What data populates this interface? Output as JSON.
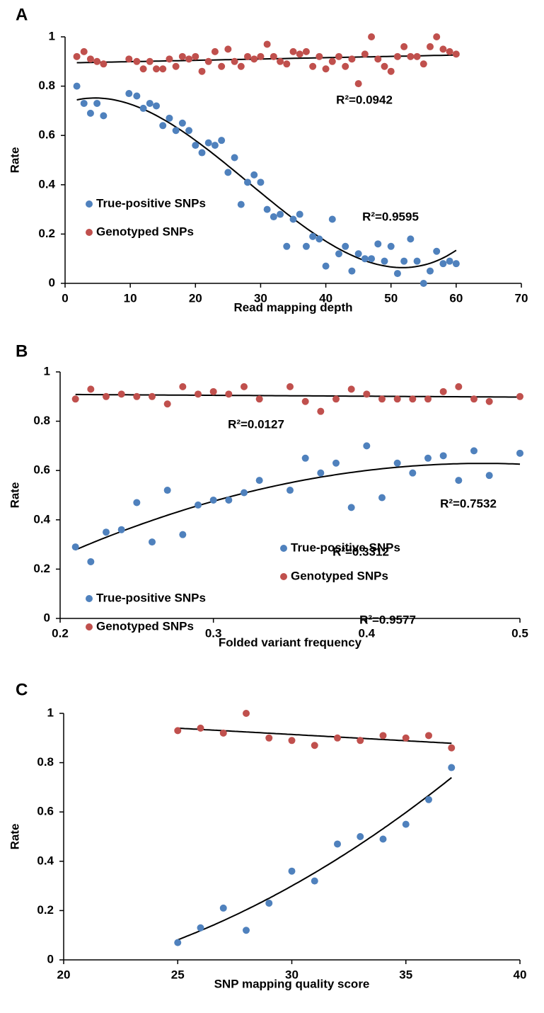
{
  "chart_data": [
    {
      "type": "scatter",
      "panel_label": "A",
      "xlabel": "Read mapping depth",
      "ylabel": "Rate",
      "xlim": [
        0,
        70
      ],
      "xticks": [
        0,
        10,
        20,
        30,
        40,
        50,
        60,
        70
      ],
      "ylim": [
        0,
        1
      ],
      "yticks": [
        0,
        0.2,
        0.4,
        0.6,
        0.8,
        1
      ],
      "grid": false,
      "legend": "left",
      "x": [
        1.8,
        2.9,
        3.9,
        4.9,
        5.9,
        9.8,
        11,
        12,
        13,
        14,
        15,
        16,
        17,
        18,
        19,
        20,
        21,
        22,
        23,
        24,
        25,
        26,
        27,
        28,
        29,
        30,
        31,
        32,
        33,
        34,
        35,
        36,
        37,
        38,
        39,
        40,
        41,
        42,
        43,
        44,
        45,
        46,
        47,
        48,
        49,
        50,
        51,
        52,
        53,
        54,
        55,
        56,
        57,
        58,
        59,
        60
      ],
      "series": [
        {
          "name": "True-positive SNPs",
          "color": "#4f81bd",
          "trendline_order": 3,
          "r2_label": "R²=0.9595",
          "values": [
            0.8,
            0.73,
            0.69,
            0.73,
            0.68,
            0.77,
            0.76,
            0.71,
            0.73,
            0.72,
            0.64,
            0.67,
            0.62,
            0.65,
            0.62,
            0.56,
            0.53,
            0.57,
            0.56,
            0.58,
            0.45,
            0.51,
            0.32,
            0.41,
            0.44,
            0.41,
            0.3,
            0.27,
            0.28,
            0.15,
            0.26,
            0.28,
            0.15,
            0.19,
            0.18,
            0.07,
            0.26,
            0.12,
            0.15,
            0.05,
            0.12,
            0.1,
            0.1,
            0.16,
            0.09,
            0.15,
            0.04,
            0.09,
            0.18,
            0.09,
            0.0,
            0.05,
            0.13,
            0.08,
            0.09,
            0.08
          ]
        },
        {
          "name": "Genotyped SNPs",
          "color": "#c0504d",
          "trendline_order": 1,
          "r2_label": "R²=0.0942",
          "values": [
            0.92,
            0.94,
            0.91,
            0.9,
            0.89,
            0.91,
            0.9,
            0.87,
            0.9,
            0.87,
            0.87,
            0.91,
            0.88,
            0.92,
            0.91,
            0.92,
            0.86,
            0.9,
            0.94,
            0.88,
            0.95,
            0.9,
            0.88,
            0.92,
            0.91,
            0.92,
            0.97,
            0.92,
            0.9,
            0.89,
            0.94,
            0.93,
            0.94,
            0.88,
            0.92,
            0.87,
            0.9,
            0.92,
            0.88,
            0.91,
            0.81,
            0.93,
            1.0,
            0.91,
            0.88,
            0.86,
            0.92,
            0.96,
            0.92,
            0.92,
            0.89,
            0.96,
            1.0,
            0.95,
            0.94,
            0.93
          ]
        }
      ]
    },
    {
      "type": "scatter",
      "panel_label": "B",
      "xlabel": "Folded variant frequency",
      "ylabel": "Rate",
      "xlim": [
        0.2,
        0.5
      ],
      "xticks": [
        0.2,
        0.3,
        0.4,
        0.5
      ],
      "ylim": [
        0,
        1
      ],
      "yticks": [
        0,
        0.2,
        0.4,
        0.6,
        0.8,
        1
      ],
      "grid": false,
      "legend": "lower center",
      "x": [
        0.21,
        0.22,
        0.23,
        0.24,
        0.25,
        0.26,
        0.27,
        0.28,
        0.29,
        0.3,
        0.31,
        0.32,
        0.33,
        0.35,
        0.36,
        0.37,
        0.38,
        0.39,
        0.4,
        0.41,
        0.42,
        0.43,
        0.44,
        0.45,
        0.46,
        0.47,
        0.48,
        0.5
      ],
      "series": [
        {
          "name": "True-positive SNPs",
          "color": "#4f81bd",
          "trendline_order": 2,
          "r2_label": "R²=0.7532",
          "values": [
            0.29,
            0.23,
            0.35,
            0.36,
            0.47,
            0.31,
            0.52,
            0.34,
            0.46,
            0.48,
            0.48,
            0.51,
            0.56,
            0.52,
            0.65,
            0.59,
            0.63,
            0.45,
            0.7,
            0.49,
            0.63,
            0.59,
            0.65,
            0.66,
            0.56,
            0.68,
            0.58,
            0.67
          ]
        },
        {
          "name": "Genotyped SNPs",
          "color": "#c0504d",
          "trendline_order": 1,
          "r2_label": "R²=0.0127",
          "values": [
            0.89,
            0.93,
            0.9,
            0.91,
            0.9,
            0.9,
            0.87,
            0.94,
            0.91,
            0.92,
            0.91,
            0.94,
            0.89,
            0.94,
            0.88,
            0.84,
            0.89,
            0.93,
            0.91,
            0.89,
            0.89,
            0.89,
            0.89,
            0.92,
            0.94,
            0.89,
            0.88,
            0.9
          ]
        }
      ]
    },
    {
      "type": "scatter",
      "panel_label": "C",
      "xlabel": "SNP mapping quality score",
      "ylabel": "Rate",
      "xlim": [
        20,
        40
      ],
      "xticks": [
        20,
        25,
        30,
        35,
        40
      ],
      "ylim": [
        0,
        1
      ],
      "yticks": [
        0,
        0.2,
        0.4,
        0.6,
        0.8,
        1
      ],
      "grid": false,
      "legend": "left",
      "x": [
        25,
        26,
        27,
        28,
        29,
        30,
        31,
        32,
        33,
        34,
        35,
        36,
        37
      ],
      "series": [
        {
          "name": "True-positive SNPs",
          "color": "#4f81bd",
          "trendline_order": 2,
          "r2_label": "R²=0.9577",
          "values": [
            0.07,
            0.13,
            0.21,
            0.12,
            0.23,
            0.36,
            0.32,
            0.47,
            0.5,
            0.49,
            0.55,
            0.65,
            0.78
          ]
        },
        {
          "name": "Genotyped SNPs",
          "color": "#c0504d",
          "trendline_order": 1,
          "r2_label": "R²=0.3312",
          "values": [
            0.93,
            0.94,
            0.92,
            1.0,
            0.9,
            0.89,
            0.87,
            0.9,
            0.89,
            0.91,
            0.9,
            0.91,
            0.86
          ]
        }
      ]
    }
  ]
}
